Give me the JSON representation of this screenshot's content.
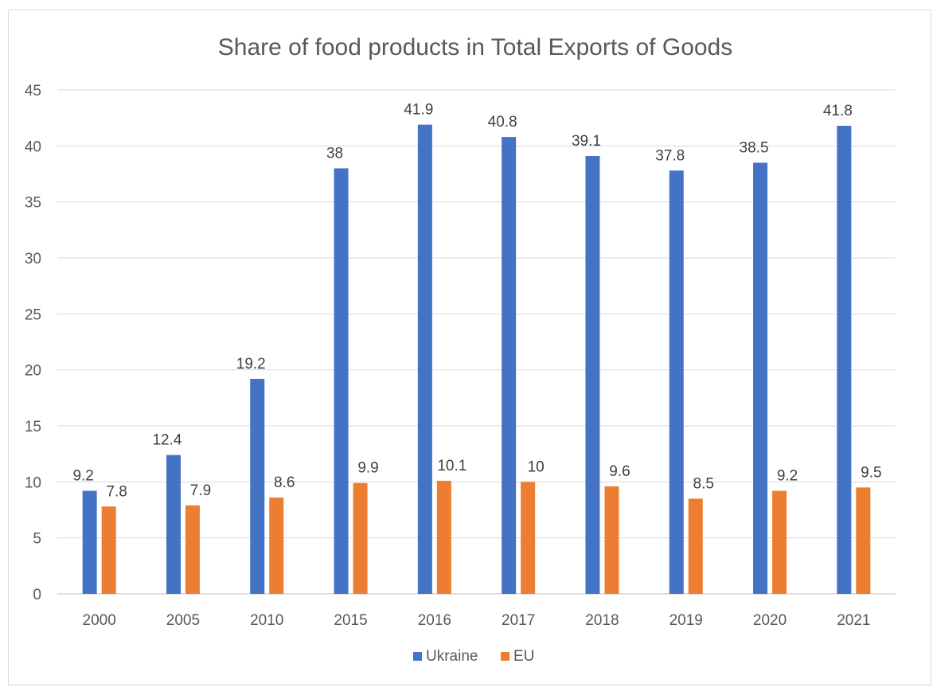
{
  "chart_data": {
    "type": "bar",
    "title": "Share of food products in Total Exports of Goods",
    "xlabel": "",
    "ylabel": "",
    "categories": [
      "2000",
      "2005",
      "2010",
      "2015",
      "2016",
      "2017",
      "2018",
      "2019",
      "2020",
      "2021"
    ],
    "series": [
      {
        "name": "Ukraine",
        "color": "#4472c4",
        "values": [
          9.2,
          12.4,
          19.2,
          38,
          41.9,
          40.8,
          39.1,
          37.8,
          38.5,
          41.8
        ]
      },
      {
        "name": "EU",
        "color": "#ed7d31",
        "values": [
          7.8,
          7.9,
          8.6,
          9.9,
          10.1,
          10,
          9.6,
          8.5,
          9.2,
          9.5
        ]
      }
    ],
    "ylim": [
      0,
      45
    ],
    "yticks": [
      0,
      5,
      10,
      15,
      20,
      25,
      30,
      35,
      40,
      45
    ],
    "grid": true,
    "data_labels": true,
    "legend_position": "bottom"
  }
}
